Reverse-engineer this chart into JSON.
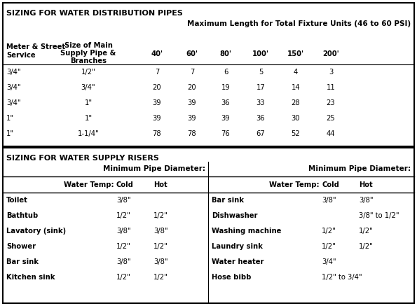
{
  "title1": "SIZING FOR WATER DISTRIBUTION PIPES",
  "subtitle": "Maximum Length for Total Fixture Units (46 to 60 PSI)",
  "dist_rows": [
    [
      "3/4\"",
      "1/2\"",
      "7",
      "7",
      "6",
      "5",
      "4",
      "3"
    ],
    [
      "3/4\"",
      "3/4\"",
      "20",
      "20",
      "19",
      "17",
      "14",
      "11"
    ],
    [
      "3/4\"",
      "1\"",
      "39",
      "39",
      "36",
      "33",
      "28",
      "23"
    ],
    [
      "1\"",
      "1\"",
      "39",
      "39",
      "39",
      "36",
      "30",
      "25"
    ],
    [
      "1\"",
      "1-1/4\"",
      "78",
      "78",
      "76",
      "67",
      "52",
      "44"
    ]
  ],
  "title2": "SIZING FOR WATER SUPPLY RISERS",
  "riser_left": [
    [
      "Toilet",
      "3/8\"",
      ""
    ],
    [
      "Bathtub",
      "1/2\"",
      "1/2\""
    ],
    [
      "Lavatory (sink)",
      "3/8\"",
      "3/8\""
    ],
    [
      "Shower",
      "1/2\"",
      "1/2\""
    ],
    [
      "Bar sink",
      "3/8\"",
      "3/8\""
    ],
    [
      "Kitchen sink",
      "1/2\"",
      "1/2\""
    ]
  ],
  "riser_right": [
    [
      "Bar sink",
      "3/8\"",
      "3/8\""
    ],
    [
      "Dishwasher",
      "",
      "3/8\" to 1/2\""
    ],
    [
      "Washing machine",
      "1/2\"",
      "1/2\""
    ],
    [
      "Laundry sink",
      "1/2\"",
      "1/2\""
    ],
    [
      "Water heater",
      "3/4\"",
      ""
    ],
    [
      "Hose bibb",
      "1/2\" to 3/4\"",
      ""
    ]
  ],
  "bg_color": "#ffffff"
}
